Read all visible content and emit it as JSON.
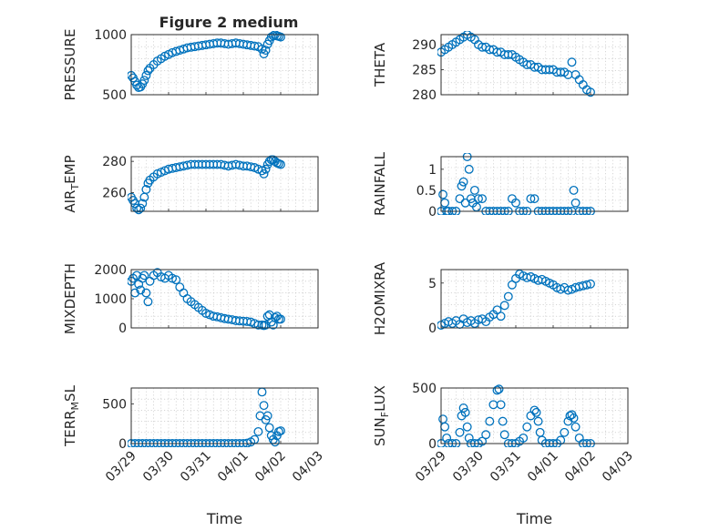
{
  "figure": {
    "title": "Figure 2 medium",
    "colors": {
      "marker": "#0072BD",
      "axes": "#262626",
      "grid": "#bdbdbd"
    }
  },
  "chart_data": [
    {
      "type": "scatter",
      "ylabel": "PRESSURE",
      "title": "Figure 2 medium",
      "ylim": [
        500,
        1000
      ],
      "yticks": [
        500,
        1000
      ],
      "show_xticklabels": false,
      "xlim": [
        0,
        5
      ],
      "x": [
        0,
        0.05,
        0.1,
        0.15,
        0.2,
        0.25,
        0.3,
        0.35,
        0.4,
        0.45,
        0.5,
        0.6,
        0.7,
        0.8,
        0.9,
        1.0,
        1.1,
        1.2,
        1.3,
        1.4,
        1.5,
        1.6,
        1.7,
        1.8,
        1.9,
        2.0,
        2.1,
        2.2,
        2.3,
        2.4,
        2.5,
        2.6,
        2.7,
        2.8,
        2.9,
        3.0,
        3.1,
        3.2,
        3.3,
        3.4,
        3.5,
        3.55,
        3.6,
        3.65,
        3.7,
        3.75,
        3.8,
        3.85,
        3.9,
        3.95,
        4.0
      ],
      "values": [
        660,
        640,
        610,
        580,
        560,
        565,
        590,
        620,
        660,
        700,
        720,
        750,
        780,
        800,
        820,
        835,
        850,
        860,
        870,
        880,
        890,
        895,
        900,
        905,
        910,
        915,
        920,
        925,
        930,
        930,
        925,
        920,
        925,
        930,
        925,
        920,
        915,
        910,
        905,
        900,
        880,
        840,
        870,
        920,
        950,
        980,
        990,
        1000,
        990,
        985,
        980
      ]
    },
    {
      "type": "scatter",
      "ylabel": "THETA",
      "ylim": [
        280,
        292
      ],
      "yticks": [
        280,
        285,
        290
      ],
      "show_xticklabels": false,
      "xlim": [
        0,
        5
      ],
      "x": [
        0,
        0.1,
        0.2,
        0.3,
        0.4,
        0.5,
        0.6,
        0.7,
        0.8,
        0.9,
        1.0,
        1.1,
        1.2,
        1.3,
        1.4,
        1.5,
        1.6,
        1.7,
        1.8,
        1.9,
        2.0,
        2.1,
        2.2,
        2.3,
        2.4,
        2.5,
        2.6,
        2.7,
        2.8,
        2.9,
        3.0,
        3.1,
        3.2,
        3.3,
        3.4,
        3.5,
        3.6,
        3.7,
        3.8,
        3.9,
        4.0
      ],
      "values": [
        288.5,
        289,
        289.5,
        290,
        290.5,
        291,
        291.5,
        292,
        291.5,
        291,
        290,
        289.5,
        289.5,
        289,
        289,
        288.5,
        288.5,
        288,
        288,
        288,
        287.5,
        287,
        286.5,
        286,
        286,
        285.5,
        285.5,
        285,
        285,
        285,
        285,
        284.5,
        284.5,
        284.5,
        284,
        286.5,
        284,
        283,
        282,
        281,
        280.5
      ]
    },
    {
      "type": "scatter",
      "ylabel": "AIR_TEMP",
      "ylim": [
        248,
        283
      ],
      "yticks": [
        260,
        280
      ],
      "show_xticklabels": false,
      "xlim": [
        0,
        5
      ],
      "x": [
        0,
        0.05,
        0.1,
        0.15,
        0.2,
        0.25,
        0.3,
        0.35,
        0.4,
        0.45,
        0.5,
        0.6,
        0.7,
        0.8,
        0.9,
        1.0,
        1.1,
        1.2,
        1.3,
        1.4,
        1.5,
        1.6,
        1.7,
        1.8,
        1.9,
        2.0,
        2.1,
        2.2,
        2.3,
        2.4,
        2.5,
        2.6,
        2.7,
        2.8,
        2.9,
        3.0,
        3.1,
        3.2,
        3.3,
        3.4,
        3.5,
        3.55,
        3.6,
        3.65,
        3.7,
        3.75,
        3.8,
        3.85,
        3.9,
        3.95,
        4.0
      ],
      "values": [
        257,
        255,
        253,
        250,
        249,
        250,
        253,
        257,
        262,
        266,
        268,
        270,
        272,
        273,
        274,
        275,
        275.5,
        276,
        276.5,
        277,
        277.5,
        278,
        278,
        278,
        278,
        278,
        278,
        278,
        278,
        278,
        277.5,
        277,
        277.5,
        278,
        277.5,
        277,
        277,
        276.5,
        276,
        275,
        274,
        272,
        275,
        278,
        280,
        281,
        281,
        280,
        279,
        278.5,
        278
      ]
    },
    {
      "type": "scatter",
      "ylabel": "RAINFALL",
      "ylim": [
        0,
        1.3
      ],
      "yticks": [
        0,
        0.5,
        1
      ],
      "yticklabels": [
        "0",
        "0.5",
        "1"
      ],
      "show_xticklabels": false,
      "xlim": [
        0,
        5
      ],
      "x": [
        0,
        0.05,
        0.1,
        0.15,
        0.2,
        0.3,
        0.4,
        0.5,
        0.55,
        0.6,
        0.65,
        0.7,
        0.75,
        0.8,
        0.85,
        0.9,
        0.95,
        1.0,
        1.1,
        1.2,
        1.3,
        1.4,
        1.5,
        1.6,
        1.7,
        1.8,
        1.9,
        2.0,
        2.1,
        2.2,
        2.3,
        2.4,
        2.5,
        2.6,
        2.7,
        2.8,
        2.9,
        3.0,
        3.1,
        3.2,
        3.3,
        3.4,
        3.5,
        3.55,
        3.6,
        3.7,
        3.8,
        3.9,
        4.0
      ],
      "values": [
        0,
        0.4,
        0.2,
        0,
        0,
        0,
        0,
        0.3,
        0.6,
        0.7,
        0.2,
        1.3,
        1.0,
        0.3,
        0.2,
        0.5,
        0.1,
        0.3,
        0.3,
        0,
        0,
        0,
        0,
        0,
        0,
        0,
        0.3,
        0.2,
        0,
        0,
        0,
        0.3,
        0.3,
        0,
        0,
        0,
        0,
        0,
        0,
        0,
        0,
        0,
        0,
        0.5,
        0.2,
        0,
        0,
        0,
        0
      ]
    },
    {
      "type": "scatter",
      "ylabel": "MIXDEPTH",
      "ylim": [
        0,
        2000
      ],
      "yticks": [
        0,
        1000,
        2000
      ],
      "show_xticklabels": false,
      "xlim": [
        0,
        5
      ],
      "x": [
        0,
        0.05,
        0.1,
        0.15,
        0.2,
        0.25,
        0.3,
        0.35,
        0.4,
        0.45,
        0.5,
        0.6,
        0.7,
        0.8,
        0.9,
        1.0,
        1.1,
        1.2,
        1.3,
        1.4,
        1.5,
        1.6,
        1.7,
        1.8,
        1.9,
        2.0,
        2.1,
        2.2,
        2.3,
        2.4,
        2.5,
        2.6,
        2.7,
        2.8,
        2.9,
        3.0,
        3.1,
        3.2,
        3.3,
        3.4,
        3.5,
        3.55,
        3.6,
        3.65,
        3.7,
        3.75,
        3.8,
        3.85,
        3.9,
        3.95,
        4.0
      ],
      "values": [
        1600,
        1700,
        1200,
        1800,
        1500,
        1300,
        1700,
        1800,
        1200,
        900,
        1600,
        1800,
        1900,
        1750,
        1700,
        1800,
        1700,
        1650,
        1400,
        1200,
        1000,
        900,
        800,
        700,
        600,
        500,
        450,
        400,
        380,
        350,
        320,
        300,
        280,
        250,
        240,
        230,
        220,
        200,
        150,
        100,
        100,
        80,
        100,
        400,
        450,
        200,
        100,
        350,
        400,
        300,
        300
      ]
    },
    {
      "type": "scatter",
      "ylabel": "H2OMIXRA",
      "ylim": [
        0,
        6.5
      ],
      "yticks": [
        0,
        5
      ],
      "show_xticklabels": false,
      "xlim": [
        0,
        5
      ],
      "x": [
        0,
        0.1,
        0.2,
        0.3,
        0.4,
        0.5,
        0.6,
        0.7,
        0.8,
        0.9,
        1.0,
        1.1,
        1.2,
        1.3,
        1.4,
        1.5,
        1.6,
        1.7,
        1.8,
        1.9,
        2.0,
        2.1,
        2.2,
        2.3,
        2.4,
        2.5,
        2.6,
        2.7,
        2.8,
        2.9,
        3.0,
        3.1,
        3.2,
        3.3,
        3.4,
        3.5,
        3.6,
        3.7,
        3.8,
        3.9,
        4.0
      ],
      "values": [
        0.3,
        0.5,
        0.7,
        0.5,
        0.8,
        0.4,
        1.0,
        0.6,
        0.8,
        0.5,
        0.9,
        1.0,
        0.7,
        1.2,
        1.5,
        2.0,
        1.3,
        2.5,
        3.5,
        4.8,
        5.5,
        6.0,
        5.8,
        5.6,
        5.7,
        5.5,
        5.3,
        5.4,
        5.2,
        5.0,
        4.8,
        4.5,
        4.3,
        4.5,
        4.2,
        4.3,
        4.5,
        4.6,
        4.7,
        4.8,
        4.9
      ]
    },
    {
      "type": "scatter",
      "ylabel": "TERR_MSL",
      "ylim": [
        0,
        700
      ],
      "yticks": [
        0,
        500
      ],
      "show_xticklabels": true,
      "xlim": [
        0,
        5
      ],
      "xlabel": "Time",
      "x": [
        0,
        0.1,
        0.2,
        0.3,
        0.4,
        0.5,
        0.6,
        0.7,
        0.8,
        0.9,
        1.0,
        1.1,
        1.2,
        1.3,
        1.4,
        1.5,
        1.6,
        1.7,
        1.8,
        1.9,
        2.0,
        2.1,
        2.2,
        2.3,
        2.4,
        2.5,
        2.6,
        2.7,
        2.8,
        2.9,
        3.0,
        3.1,
        3.2,
        3.3,
        3.4,
        3.45,
        3.5,
        3.55,
        3.6,
        3.65,
        3.7,
        3.75,
        3.8,
        3.85,
        3.9,
        3.95,
        4.0
      ],
      "values": [
        0,
        0,
        0,
        0,
        0,
        0,
        0,
        0,
        0,
        0,
        0,
        0,
        0,
        0,
        0,
        0,
        0,
        0,
        0,
        0,
        0,
        0,
        0,
        0,
        0,
        0,
        0,
        0,
        0,
        0,
        0,
        5,
        20,
        50,
        150,
        350,
        650,
        480,
        300,
        350,
        200,
        100,
        50,
        20,
        100,
        150,
        160
      ]
    },
    {
      "type": "scatter",
      "ylabel": "SUN_FLUX",
      "ylim": [
        0,
        500
      ],
      "yticks": [
        0,
        500
      ],
      "show_xticklabels": true,
      "xlim": [
        0,
        5
      ],
      "xlabel": "Time",
      "x": [
        0,
        0.05,
        0.1,
        0.15,
        0.2,
        0.3,
        0.4,
        0.5,
        0.55,
        0.6,
        0.65,
        0.7,
        0.75,
        0.8,
        0.9,
        1.0,
        1.1,
        1.2,
        1.3,
        1.4,
        1.5,
        1.55,
        1.6,
        1.65,
        1.7,
        1.8,
        1.9,
        2.0,
        2.1,
        2.2,
        2.3,
        2.4,
        2.5,
        2.55,
        2.6,
        2.65,
        2.7,
        2.8,
        2.9,
        3.0,
        3.1,
        3.2,
        3.3,
        3.4,
        3.45,
        3.5,
        3.55,
        3.6,
        3.7,
        3.8,
        3.9,
        4.0
      ],
      "values": [
        0,
        220,
        150,
        50,
        0,
        0,
        0,
        100,
        250,
        320,
        280,
        150,
        50,
        0,
        0,
        0,
        20,
        80,
        200,
        350,
        480,
        490,
        350,
        200,
        80,
        0,
        0,
        0,
        20,
        50,
        150,
        250,
        300,
        280,
        200,
        100,
        30,
        0,
        0,
        0,
        0,
        30,
        100,
        200,
        250,
        260,
        230,
        150,
        50,
        0,
        0,
        0
      ]
    }
  ],
  "xaxis": {
    "tick_labels": [
      "03/29",
      "03/30",
      "03/31",
      "04/01",
      "04/02",
      "04/03"
    ]
  }
}
